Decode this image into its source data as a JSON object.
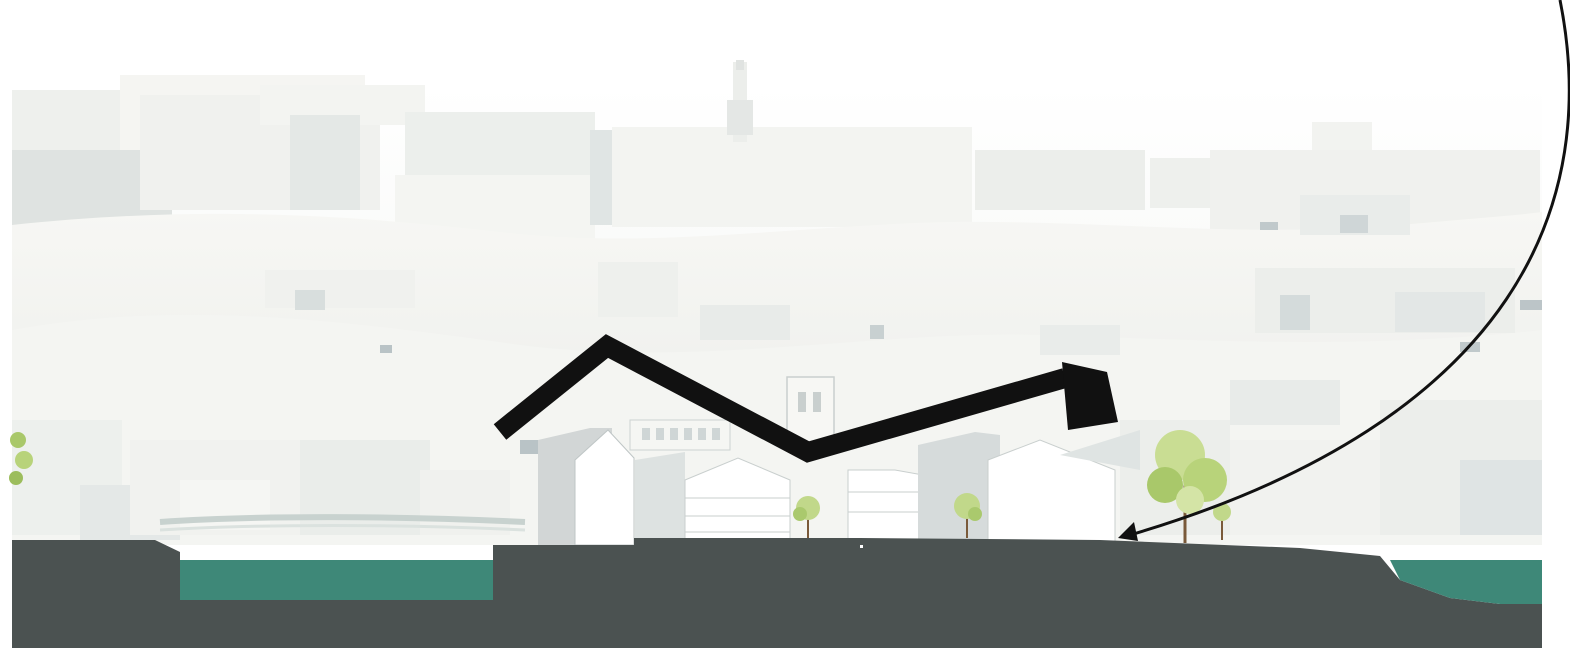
{
  "diagram": {
    "type": "architectural-site-section",
    "palette": {
      "background": "#ffffff",
      "massing_light": "#f3f4f1",
      "massing_mid": "#e6e8e5",
      "massing_shadow": "#c9d0d2",
      "ground_section": "#4b5251",
      "water": "#3e8878",
      "arrow": "#111111",
      "tree_foliage": "#b8d37a",
      "building_facade": "#ffffff"
    },
    "elements": [
      "city-massing-background",
      "tower",
      "section-ground",
      "canal-water-left",
      "river-water-right",
      "zigzag-movement-arrow",
      "curved-view-arrow",
      "section-buildings",
      "trees"
    ]
  }
}
